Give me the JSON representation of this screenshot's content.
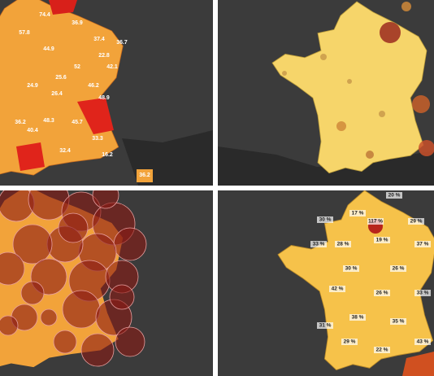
{
  "incidence_map": {
    "labels": [
      "74.4",
      "36.9",
      "37.4",
      "36.7",
      "22.8",
      "42.1",
      "24.9",
      "25.6",
      "52",
      "46.2",
      "26.4",
      "48.9",
      "36.2",
      "48.3",
      "33.3",
      "16.2",
      "36.2",
      "40.4",
      "57.8",
      "44.9",
      "45.7",
      "32.4"
    ]
  },
  "percentage_map": {
    "labels": [
      "20 %",
      "17 %",
      "117 %",
      "30 %",
      "29 %",
      "33 %",
      "28 %",
      "19 %",
      "37 %",
      "30 %",
      "26 %",
      "42 %",
      "26 %",
      "33 %",
      "38 %",
      "35 %",
      "29 %",
      "22 %",
      "43 %",
      "31 %"
    ]
  }
}
